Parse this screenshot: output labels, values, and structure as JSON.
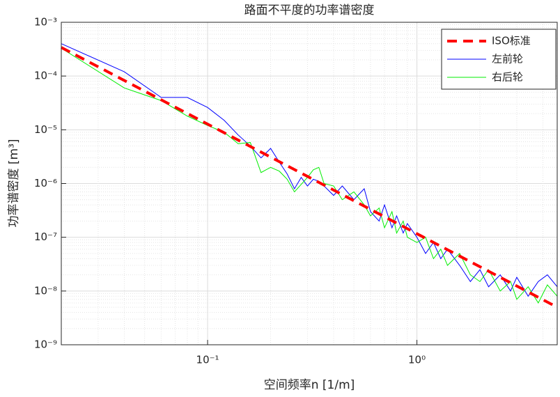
{
  "chart_data": {
    "type": "line",
    "title": "路面不平度的功率谱密度",
    "x_label": "空间频率n [1/m]",
    "y_label": "功率谱密度 [m³]",
    "log_x": true,
    "log_y": true,
    "grid": true,
    "minor_grid": true,
    "legend": "northeast",
    "xlim": [
      0.02,
      4.68
    ],
    "ylim": [
      1e-09,
      0.001
    ],
    "xticks": [
      {
        "value": 0.1,
        "label": "10⁻¹"
      },
      {
        "value": 1,
        "label": "10⁰"
      }
    ],
    "yticks": [
      {
        "value": 1e-09,
        "label": "10⁻⁹"
      },
      {
        "value": 1e-08,
        "label": "10⁻⁸"
      },
      {
        "value": 1e-07,
        "label": "10⁻⁷"
      },
      {
        "value": 1e-06,
        "label": "10⁻⁶"
      },
      {
        "value": 1e-05,
        "label": "10⁻⁵"
      },
      {
        "value": 0.0001,
        "label": "10⁻⁴"
      },
      {
        "value": 0.001,
        "label": "10⁻³"
      }
    ],
    "series": [
      {
        "name": "ISO标准",
        "color": "#ff0000",
        "dashed": true,
        "x": [
          0.02,
          4.68
        ],
        "values": [
          0.00034,
          5e-09
        ]
      },
      {
        "name": "左前轮",
        "color": "#0000ff",
        "x": [
          0.02,
          0.04,
          0.06,
          0.08,
          0.1,
          0.12,
          0.14,
          0.16,
          0.18,
          0.2,
          0.22,
          0.24,
          0.26,
          0.28,
          0.3,
          0.32,
          0.34,
          0.36,
          0.4,
          0.44,
          0.5,
          0.56,
          0.6,
          0.66,
          0.7,
          0.76,
          0.8,
          0.86,
          0.9,
          1.0,
          1.1,
          1.2,
          1.3,
          1.4,
          1.6,
          1.8,
          2.0,
          2.2,
          2.5,
          2.8,
          3.0,
          3.4,
          3.8,
          4.2,
          4.68
        ],
        "values": [
          0.0004,
          0.00012,
          4e-05,
          4e-05,
          2.6e-05,
          1.5e-05,
          8e-06,
          5e-06,
          3e-06,
          4.5e-06,
          2.5e-06,
          1.5e-06,
          8e-07,
          1.3e-06,
          9e-07,
          1.2e-06,
          1.1e-06,
          9e-07,
          6e-07,
          9e-07,
          5e-07,
          8e-07,
          3e-07,
          2e-07,
          4e-07,
          1.5e-07,
          2.5e-07,
          1.2e-07,
          1.8e-07,
          1e-07,
          5e-08,
          8e-08,
          4e-08,
          6e-08,
          3e-08,
          1.5e-08,
          2.5e-08,
          1.2e-08,
          2e-08,
          1e-08,
          1.8e-08,
          8e-09,
          1.5e-08,
          2e-08,
          1.2e-08
        ]
      },
      {
        "name": "右后轮",
        "color": "#00ee00",
        "x": [
          0.02,
          0.04,
          0.06,
          0.08,
          0.1,
          0.12,
          0.14,
          0.16,
          0.18,
          0.2,
          0.22,
          0.24,
          0.26,
          0.3,
          0.32,
          0.34,
          0.36,
          0.4,
          0.44,
          0.5,
          0.56,
          0.6,
          0.66,
          0.7,
          0.76,
          0.8,
          0.86,
          0.9,
          1.0,
          1.1,
          1.2,
          1.3,
          1.4,
          1.6,
          1.8,
          2.0,
          2.2,
          2.5,
          2.8,
          3.0,
          3.4,
          3.8,
          4.2,
          4.68
        ],
        "values": [
          0.00033,
          6e-05,
          3.5e-05,
          1.8e-05,
          1.2e-05,
          9e-06,
          5.5e-06,
          5.8e-06,
          1.6e-06,
          2e-06,
          1.7e-06,
          1.2e-06,
          7e-07,
          1.3e-06,
          1.8e-06,
          2e-06,
          1e-06,
          9e-07,
          5e-07,
          7e-07,
          4e-07,
          2.5e-07,
          3.5e-07,
          1.5e-07,
          3e-07,
          1.2e-07,
          2e-07,
          1e-07,
          8e-08,
          1e-07,
          4e-08,
          6e-08,
          3e-08,
          5e-08,
          2e-08,
          1.5e-08,
          2.5e-08,
          1e-08,
          1.5e-08,
          7e-09,
          1.2e-08,
          6e-09,
          1.3e-08,
          8e-09
        ]
      }
    ]
  }
}
